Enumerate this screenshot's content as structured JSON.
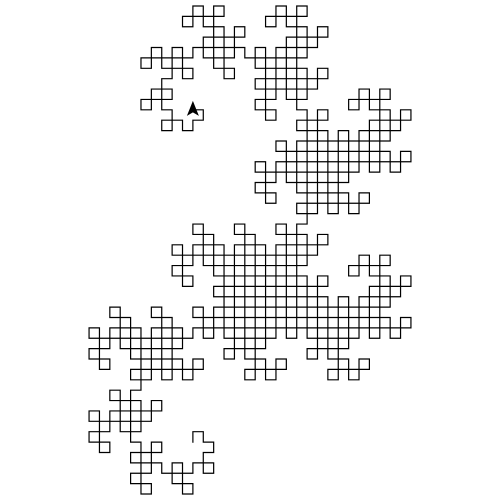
{
  "drawing": {
    "kind": "turtle-graphics fractal",
    "curve": "dragon-curve",
    "stroke_color": "#000000",
    "background_color": "#ffffff",
    "cursor": {
      "shape": "classic-turtle-arrow",
      "color": "#000000",
      "heading": "up"
    }
  }
}
